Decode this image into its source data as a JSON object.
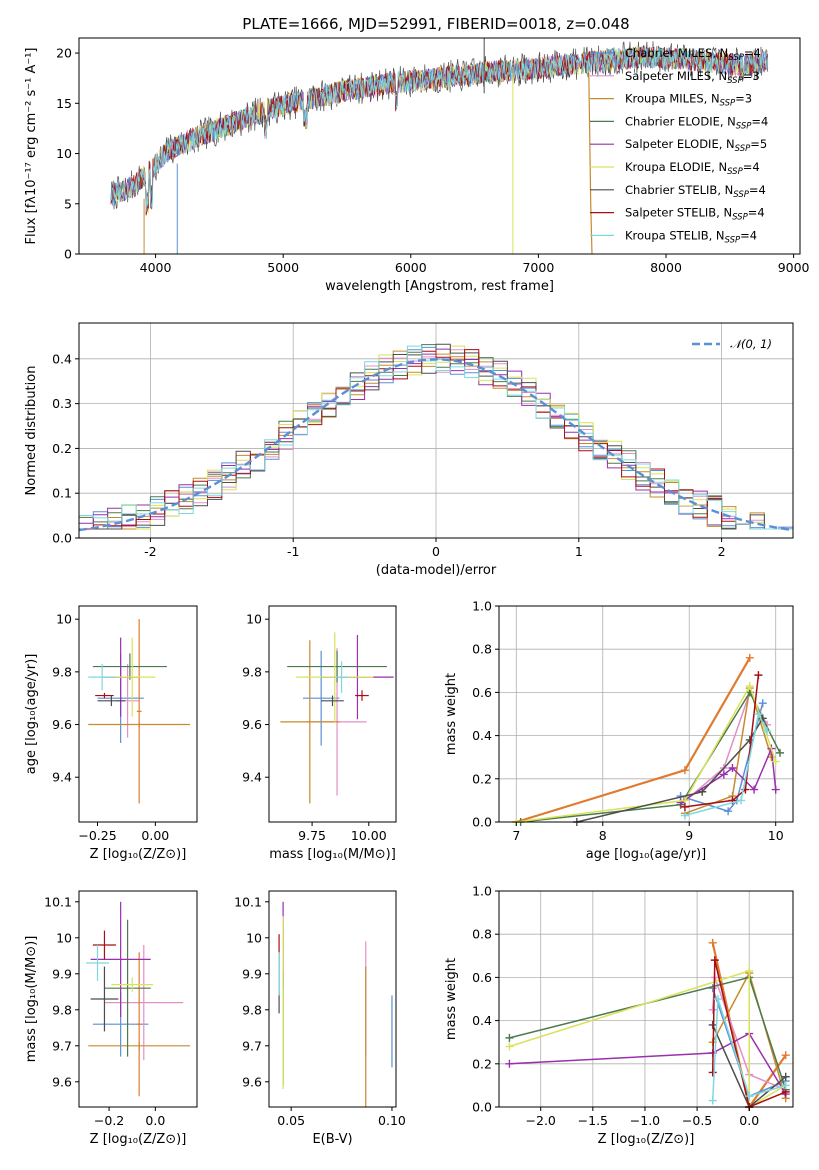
{
  "figure": {
    "title": "PLATE=1666, MJD=52991, FIBERID=0018, z=0.048"
  },
  "colors": {
    "Chabrier MILES": "#5b8fd6",
    "Salpeter MILES": "#e38fc8",
    "Kroupa MILES": "#c88a2e",
    "Chabrier ELODIE": "#4c7a4c",
    "Salpeter ELODIE": "#9b2fae",
    "Kroupa ELODIE": "#d9e25a",
    "Chabrier STELIB": "#4d4d4d",
    "Salpeter STELIB": "#a50f15",
    "Kroupa STELIB": "#7fd8e0",
    "model_line": "#e07a2e",
    "normal_curve": "#5b8fd6"
  },
  "chart_data": [
    {
      "id": "spectrum",
      "type": "line",
      "title": "PLATE=1666, MJD=52991, FIBERID=0018, z=0.048",
      "xlabel": "wavelength [Angstrom, rest frame]",
      "ylabel": "Flux [fλ10⁻¹⁷ erg cm⁻² s⁻¹ A⁻¹]",
      "xlim": [
        3400,
        9050
      ],
      "ylim": [
        0,
        21.5
      ],
      "xticks": [
        4000,
        5000,
        6000,
        7000,
        8000,
        9000
      ],
      "yticks": [
        0,
        5,
        10,
        15,
        20
      ],
      "legend_position": "upper right",
      "series": [
        {
          "name": "Chabrier MILES, N_SSP=4",
          "label_main": "Chabrier MILES, N",
          "label_sub": "SSP",
          "label_tail": "=4",
          "key": "Chabrier MILES"
        },
        {
          "name": "Salpeter MILES, N_SSP=3",
          "label_main": "Salpeter MILES, N",
          "label_sub": "SSP",
          "label_tail": "=3",
          "key": "Salpeter MILES"
        },
        {
          "name": "Kroupa MILES, N_SSP=3",
          "label_main": "Kroupa MILES, N",
          "label_sub": "SSP",
          "label_tail": "=3",
          "key": "Kroupa MILES"
        },
        {
          "name": "Chabrier ELODIE, N_SSP=4",
          "label_main": "Chabrier ELODIE, N",
          "label_sub": "SSP",
          "label_tail": "=4",
          "key": "Chabrier ELODIE"
        },
        {
          "name": "Salpeter ELODIE, N_SSP=5",
          "label_main": "Salpeter ELODIE, N",
          "label_sub": "SSP",
          "label_tail": "=5",
          "key": "Salpeter ELODIE"
        },
        {
          "name": "Kroupa ELODIE, N_SSP=4",
          "label_main": "Kroupa ELODIE, N",
          "label_sub": "SSP",
          "label_tail": "=4",
          "key": "Kroupa ELODIE"
        },
        {
          "name": "Chabrier STELIB, N_SSP=4",
          "label_main": "Chabrier STELIB, N",
          "label_sub": "SSP",
          "label_tail": "=4",
          "key": "Chabrier STELIB"
        },
        {
          "name": "Salpeter STELIB, N_SSP=4",
          "label_main": "Salpeter STELIB, N",
          "label_sub": "SSP",
          "label_tail": "=4",
          "key": "Salpeter STELIB"
        },
        {
          "name": "Kroupa STELIB, N_SSP=4",
          "label_main": "Kroupa STELIB, N",
          "label_sub": "SSP",
          "label_tail": "=4",
          "key": "Kroupa STELIB"
        }
      ],
      "continuum": {
        "x": [
          3650,
          3800,
          3950,
          4100,
          4250,
          4400,
          4600,
          4800,
          5000,
          5200,
          5400,
          5600,
          5800,
          6000,
          6200,
          6400,
          6600,
          6800,
          7000,
          7200,
          7400,
          7600,
          7800,
          8000,
          8200,
          8400,
          8600,
          8800
        ],
        "y": [
          5.8,
          6.6,
          8.2,
          10.3,
          11.2,
          12.0,
          13.0,
          14.0,
          14.8,
          15.4,
          16.0,
          16.5,
          16.9,
          17.2,
          17.5,
          17.8,
          18.1,
          18.3,
          18.5,
          18.8,
          19.1,
          19.4,
          19.6,
          19.6,
          19.3,
          19.0,
          18.8,
          19.2
        ]
      }
    },
    {
      "id": "residuals",
      "type": "histogram",
      "xlabel": "(data-model)/error",
      "ylabel": "Normed distribution",
      "xlim": [
        -2.5,
        2.5
      ],
      "ylim": [
        0,
        0.48
      ],
      "xticks": [
        -2,
        -1,
        0,
        1,
        2
      ],
      "yticks": [
        0.0,
        0.1,
        0.2,
        0.3,
        0.4
      ],
      "grid": true,
      "legend_position": "upper right",
      "curve_label": "𝒩(0, 1)",
      "bin_width": 0.1
    },
    {
      "id": "age_vs_Z",
      "type": "errorbar",
      "xlabel": "Z [log₁₀(Z/Z⊙)]",
      "ylabel": "age  [log₁₀(age/yr)]",
      "xlim": [
        -0.33,
        0.18
      ],
      "ylim": [
        9.23,
        10.05
      ],
      "xticks": [
        -0.25,
        0.0
      ],
      "xticklabels": [
        "−0.25",
        "0.00"
      ],
      "yticks": [
        9.4,
        9.6,
        9.8,
        10.0
      ],
      "points": [
        {
          "key": "Chabrier MILES",
          "x": -0.15,
          "xerr": 0.1,
          "y": 9.7,
          "yerr": 0.17
        },
        {
          "key": "Salpeter MILES",
          "x": -0.12,
          "xerr": 0.05,
          "y": 9.69,
          "yerr": 0.14
        },
        {
          "key": "Kroupa MILES",
          "x": -0.07,
          "xerr": 0.22,
          "y": 9.6,
          "yerr": 0.01
        },
        {
          "key": "Model MILES",
          "x": -0.07,
          "xerr": 0.01,
          "y": 9.65,
          "yerr": 0.35
        },
        {
          "key": "Chabrier ELODIE",
          "x": -0.11,
          "xerr": 0.16,
          "y": 9.82,
          "yerr": 0.05
        },
        {
          "key": "Salpeter ELODIE",
          "x": -0.15,
          "xerr": 0.08,
          "y": 9.78,
          "yerr": 0.15
        },
        {
          "key": "Kroupa ELODIE",
          "x": -0.1,
          "xerr": 0.1,
          "y": 9.78,
          "yerr": 0.15
        },
        {
          "key": "Chabrier STELIB",
          "x": -0.19,
          "xerr": 0.06,
          "y": 9.69,
          "yerr": 0.02
        },
        {
          "key": "Salpeter STELIB",
          "x": -0.22,
          "xerr": 0.04,
          "y": 9.71,
          "yerr": 0.01
        },
        {
          "key": "Kroupa STELIB",
          "x": -0.23,
          "xerr": 0.06,
          "y": 9.78,
          "yerr": 0.05
        }
      ]
    },
    {
      "id": "age_vs_mass",
      "type": "errorbar",
      "xlabel": "mass [log₁₀(M/M⊙)]",
      "ylabel": "",
      "xlim": [
        9.56,
        10.12
      ],
      "ylim": [
        9.23,
        10.05
      ],
      "xticks": [
        9.75,
        10.0
      ],
      "xticklabels": [
        "9.75",
        "10.00"
      ],
      "yticks": [
        9.4,
        9.6,
        9.8,
        10.0
      ],
      "points": [
        {
          "key": "Chabrier MILES",
          "x": 9.79,
          "xerr": 0.08,
          "y": 9.7,
          "yerr": 0.18
        },
        {
          "key": "Salpeter MILES",
          "x": 9.86,
          "xerr": 0.13,
          "y": 9.61,
          "yerr": 0.28
        },
        {
          "key": "Kroupa MILES",
          "x": 9.74,
          "xerr": 0.13,
          "y": 9.61,
          "yerr": 0.31
        },
        {
          "key": "Chabrier ELODIE",
          "x": 9.86,
          "xerr": 0.22,
          "y": 9.82,
          "yerr": 0.06
        },
        {
          "key": "Salpeter ELODIE",
          "x": 9.95,
          "xerr": 0.16,
          "y": 9.78,
          "yerr": 0.16
        },
        {
          "key": "Kroupa ELODIE",
          "x": 9.85,
          "xerr": 0.17,
          "y": 9.78,
          "yerr": 0.17
        },
        {
          "key": "Chabrier STELIB",
          "x": 9.84,
          "xerr": 0.05,
          "y": 9.69,
          "yerr": 0.02
        },
        {
          "key": "Salpeter STELIB",
          "x": 9.97,
          "xerr": 0.03,
          "y": 9.71,
          "yerr": 0.02
        },
        {
          "key": "Kroupa STELIB",
          "x": 9.88,
          "xerr": 0.03,
          "y": 9.78,
          "yerr": 0.06
        }
      ]
    },
    {
      "id": "weight_vs_age",
      "type": "line",
      "xlabel": "age  [log₁₀(age/yr)]",
      "ylabel": "mass weight",
      "xlim": [
        6.8,
        10.2
      ],
      "ylim": [
        0,
        1.0
      ],
      "xticks": [
        7,
        8,
        9,
        10
      ],
      "yticks": [
        0.0,
        0.2,
        0.4,
        0.6,
        0.8,
        1.0
      ],
      "grid": true,
      "series": [
        {
          "key": "Model MILES",
          "x": [
            7.0,
            8.95,
            9.7
          ],
          "y": [
            0.0,
            0.24,
            0.76
          ],
          "width": 2.2
        },
        {
          "key": "Chabrier MILES",
          "x": [
            8.9,
            9.45,
            9.55,
            9.85
          ],
          "y": [
            0.12,
            0.05,
            0.1,
            0.55
          ]
        },
        {
          "key": "Salpeter MILES",
          "x": [
            8.9,
            9.4,
            9.7,
            9.9
          ],
          "y": [
            0.08,
            0.25,
            0.6,
            0.45
          ]
        },
        {
          "key": "Kroupa MILES",
          "x": [
            8.95,
            9.5,
            9.7,
            9.95
          ],
          "y": [
            0.04,
            0.12,
            0.62,
            0.3
          ]
        },
        {
          "key": "Chabrier ELODIE",
          "x": [
            7.05,
            8.9,
            9.7,
            10.05
          ],
          "y": [
            0.0,
            0.08,
            0.6,
            0.32
          ]
        },
        {
          "key": "Salpeter ELODIE",
          "x": [
            8.9,
            9.4,
            9.5,
            9.75,
            9.95,
            10.0
          ],
          "y": [
            0.09,
            0.22,
            0.25,
            0.15,
            0.34,
            0.15
          ]
        },
        {
          "key": "Kroupa ELODIE",
          "x": [
            7.0,
            8.95,
            9.7,
            10.0
          ],
          "y": [
            0.0,
            0.1,
            0.63,
            0.28
          ]
        },
        {
          "key": "Chabrier STELIB",
          "x": [
            7.7,
            9.15,
            9.7,
            9.85
          ],
          "y": [
            0.0,
            0.14,
            0.38,
            0.48
          ]
        },
        {
          "key": "Salpeter STELIB",
          "x": [
            8.95,
            9.5,
            9.65,
            9.8
          ],
          "y": [
            0.07,
            0.1,
            0.15,
            0.68
          ]
        },
        {
          "key": "Kroupa STELIB",
          "x": [
            8.95,
            9.6,
            9.8,
            9.9
          ],
          "y": [
            0.03,
            0.1,
            0.5,
            0.42
          ]
        }
      ]
    },
    {
      "id": "mass_vs_Z",
      "type": "errorbar",
      "xlabel": "Z [log₁₀(Z/Z⊙)]",
      "ylabel": "mass [log₁₀(M/M⊙)]",
      "xlim": [
        -0.33,
        0.18
      ],
      "ylim": [
        9.53,
        10.13
      ],
      "xticks": [
        -0.2,
        0.0
      ],
      "xticklabels": [
        "−0.2",
        "0.0"
      ],
      "yticks": [
        9.6,
        9.7,
        9.8,
        9.9,
        10.0,
        10.1
      ],
      "points": [
        {
          "key": "Chabrier MILES",
          "x": -0.15,
          "xerr": 0.12,
          "y": 9.76,
          "yerr": 0.09
        },
        {
          "key": "Salpeter MILES",
          "x": -0.05,
          "xerr": 0.17,
          "y": 9.82,
          "yerr": 0.16
        },
        {
          "key": "Kroupa MILES",
          "x": -0.07,
          "xerr": 0.22,
          "y": 9.7,
          "yerr": 0.01
        },
        {
          "key": "Model MILES",
          "x": -0.07,
          "xerr": 0.01,
          "y": 9.76,
          "yerr": 0.2
        },
        {
          "key": "Chabrier ELODIE",
          "x": -0.12,
          "xerr": 0.1,
          "y": 9.86,
          "yerr": 0.19
        },
        {
          "key": "Salpeter ELODIE",
          "x": -0.15,
          "xerr": 0.13,
          "y": 9.94,
          "yerr": 0.16
        },
        {
          "key": "Kroupa ELODIE",
          "x": -0.1,
          "xerr": 0.09,
          "y": 9.87,
          "yerr": 0.02
        },
        {
          "key": "Chabrier STELIB",
          "x": -0.22,
          "xerr": 0.06,
          "y": 9.83,
          "yerr": 0.09
        },
        {
          "key": "Salpeter STELIB",
          "x": -0.22,
          "xerr": 0.05,
          "y": 9.98,
          "yerr": 0.04
        },
        {
          "key": "Kroupa STELIB",
          "x": -0.25,
          "xerr": 0.05,
          "y": 9.93,
          "yerr": 0.05
        }
      ]
    },
    {
      "id": "mass_vs_ebv",
      "type": "errorbar",
      "xlabel": "E(B-V)",
      "ylabel": "",
      "xlim": [
        0.039,
        0.102
      ],
      "ylim": [
        9.53,
        10.13
      ],
      "xticks": [
        0.05,
        0.1
      ],
      "xticklabels": [
        "0.05",
        "0.10"
      ],
      "yticks": [
        9.6,
        9.7,
        9.8,
        9.9,
        10.0,
        10.1
      ],
      "points": [
        {
          "key": "Chabrier MILES",
          "x": 0.1,
          "xerr": 0.0,
          "y": 9.74,
          "yerr": 0.1
        },
        {
          "key": "Salpeter MILES",
          "x": 0.087,
          "xerr": 0.0,
          "y": 9.83,
          "yerr": 0.16
        },
        {
          "key": "Kroupa MILES",
          "x": 0.087,
          "xerr": 0.0,
          "y": 9.7,
          "yerr": 0.22
        },
        {
          "key": "Chabrier ELODIE",
          "x": 0.046,
          "xerr": 0.0,
          "y": 9.75,
          "yerr": 0.16
        },
        {
          "key": "Salpeter ELODIE",
          "x": 0.046,
          "xerr": 0.0,
          "y": 9.98,
          "yerr": 0.12
        },
        {
          "key": "Kroupa ELODIE",
          "x": 0.046,
          "xerr": 0.0,
          "y": 9.82,
          "yerr": 0.24
        },
        {
          "key": "Chabrier STELIB",
          "x": 0.044,
          "xerr": 0.0,
          "y": 9.86,
          "yerr": 0.07
        },
        {
          "key": "Salpeter STELIB",
          "x": 0.044,
          "xerr": 0.0,
          "y": 9.97,
          "yerr": 0.04
        },
        {
          "key": "Kroupa STELIB",
          "x": 0.044,
          "xerr": 0.0,
          "y": 9.9,
          "yerr": 0.06
        }
      ]
    },
    {
      "id": "weight_vs_Z",
      "type": "line",
      "xlabel": "Z [log₁₀(Z/Z⊙)]",
      "ylabel": "mass weight",
      "xlim": [
        -2.4,
        0.42
      ],
      "ylim": [
        0,
        1.0
      ],
      "xticks": [
        -2.0,
        -1.5,
        -1.0,
        -0.5,
        0.0
      ],
      "xticklabels": [
        "−2.0",
        "−1.5",
        "−1.0",
        "−0.5",
        "0.0"
      ],
      "yticks": [
        0.0,
        0.2,
        0.4,
        0.6,
        0.8,
        1.0
      ],
      "grid": true,
      "series": [
        {
          "key": "Model MILES",
          "x": [
            -0.35,
            0.0,
            0.35
          ],
          "y": [
            0.76,
            0.0,
            0.24
          ],
          "width": 2.2
        },
        {
          "key": "Chabrier MILES",
          "x": [
            -0.35,
            0.0,
            0.35
          ],
          "y": [
            0.55,
            0.05,
            0.12
          ]
        },
        {
          "key": "Salpeter MILES",
          "x": [
            -0.35,
            -0.33,
            0.0,
            0.35
          ],
          "y": [
            0.45,
            0.6,
            0.15,
            0.08
          ]
        },
        {
          "key": "Kroupa MILES",
          "x": [
            -0.35,
            0.0,
            0.35
          ],
          "y": [
            0.3,
            0.62,
            0.04
          ]
        },
        {
          "key": "Chabrier ELODIE",
          "x": [
            -2.3,
            0.0,
            0.35
          ],
          "y": [
            0.32,
            0.6,
            0.08
          ]
        },
        {
          "key": "Salpeter ELODIE",
          "x": [
            -2.3,
            -0.35,
            0.0,
            0.35
          ],
          "y": [
            0.2,
            0.25,
            0.34,
            0.06
          ]
        },
        {
          "key": "Kroupa ELODIE",
          "x": [
            -2.3,
            0.0,
            0.0,
            0.35
          ],
          "y": [
            0.28,
            0.63,
            0.0,
            0.1
          ]
        },
        {
          "key": "Chabrier STELIB",
          "x": [
            -0.35,
            0.0,
            0.35
          ],
          "y": [
            0.38,
            0.0,
            0.14
          ]
        },
        {
          "key": "Salpeter STELIB",
          "x": [
            -0.35,
            -0.33,
            0.0,
            0.35
          ],
          "y": [
            0.16,
            0.68,
            0.0,
            0.07
          ]
        },
        {
          "key": "Kroupa STELIB",
          "x": [
            -0.35,
            -0.3,
            0.0,
            0.35
          ],
          "y": [
            0.03,
            0.5,
            0.05,
            0.1
          ]
        }
      ]
    }
  ]
}
